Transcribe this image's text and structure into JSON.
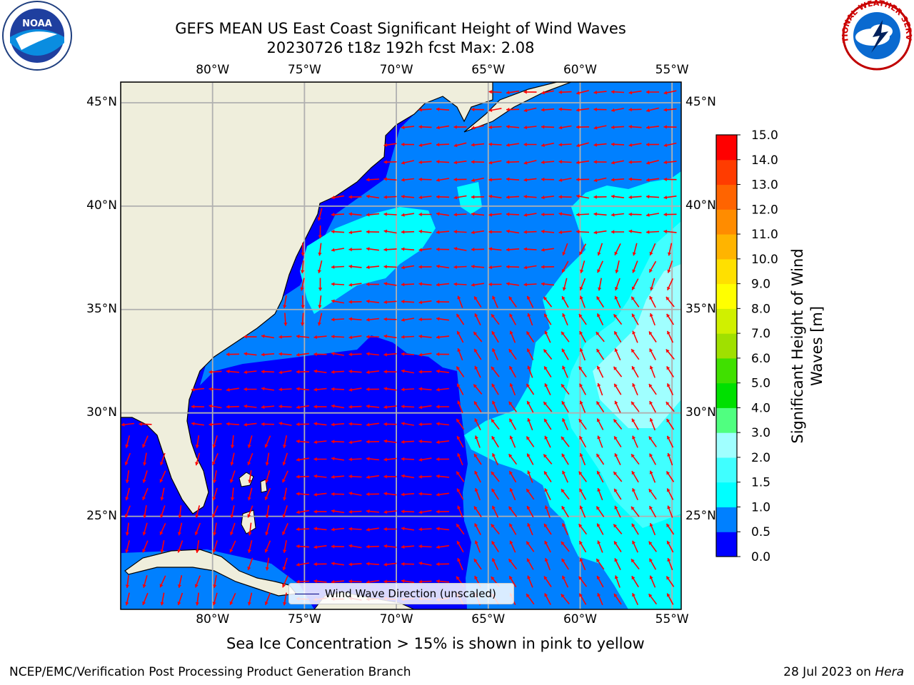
{
  "title": {
    "line1": "GEFS MEAN US East Coast Significant Height of Wind Waves",
    "line2": "20230726 t18z 192h fcst   Max: 2.08"
  },
  "logos": {
    "left": {
      "icon": "noaa-logo",
      "text": "NOAA"
    },
    "right": {
      "icon": "national-weather-service-logo",
      "text": "NATIONAL WEATHER SERVICE"
    }
  },
  "axes": {
    "lon_labels": [
      "80°W",
      "75°W",
      "70°W",
      "65°W",
      "60°W",
      "55°W"
    ],
    "lat_labels": [
      "45°N",
      "40°N",
      "35°N",
      "30°N",
      "25°N"
    ],
    "extent": {
      "lon_min": -85,
      "lon_max": -54.5,
      "lat_min": 20.5,
      "lat_max": 46
    }
  },
  "legend": {
    "label": "Wind Wave Direction (unscaled)",
    "line_color": "#000080"
  },
  "colorbar": {
    "label": "Significant Height of Wind Waves [m]",
    "ticks": [
      "0.0",
      "0.5",
      "1.0",
      "1.5",
      "2.0",
      "3.0",
      "4.0",
      "5.0",
      "6.0",
      "7.0",
      "8.0",
      "9.0",
      "10.0",
      "11.0",
      "12.0",
      "13.0",
      "14.0",
      "15.0"
    ],
    "colors": [
      "#0000ff",
      "#0080ff",
      "#00ffff",
      "#40ffff",
      "#a0ffff",
      "#50ff80",
      "#00e000",
      "#40e000",
      "#a0e000",
      "#d0f000",
      "#ffff00",
      "#ffe000",
      "#ffb400",
      "#ff8c00",
      "#ff6400",
      "#ff3c00",
      "#ff0000"
    ]
  },
  "colors": {
    "land": "#efeedc",
    "ocean_0_0_5": "#0000ff",
    "ocean_0_5_1": "#0080ff",
    "ocean_1_1_5": "#00ffff",
    "ocean_1_5_2": "#40ffff",
    "ocean_2_3": "#a0ffff",
    "arrow": "#ff0000",
    "grid": "#b0b0b0"
  },
  "caption": "Sea Ice Concentration > 15% is shown in pink to yellow",
  "footer": {
    "left": "NCEP/EMC/Verification Post Processing Product Generation Branch",
    "right_date": "28 Jul 2023 on ",
    "right_host": "Hera"
  }
}
